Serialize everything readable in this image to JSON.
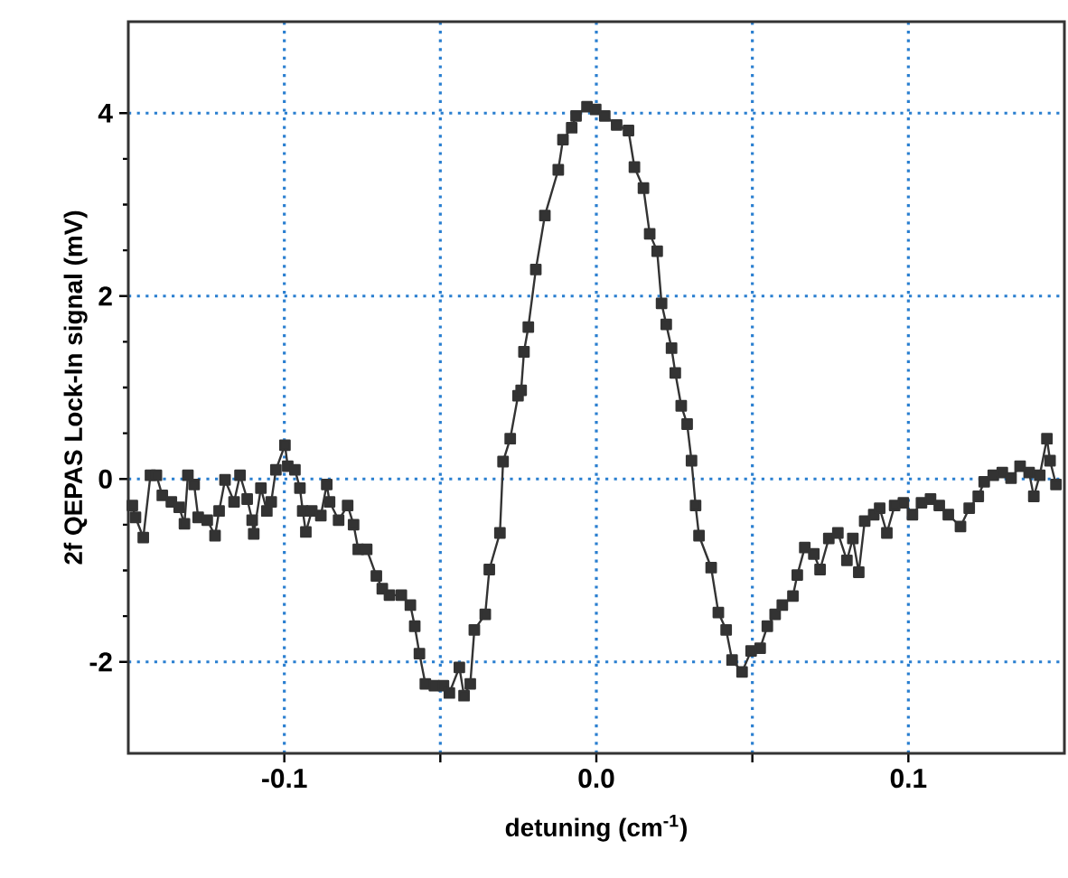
{
  "chart_data": {
    "type": "line",
    "xlabel": "detuning (cm$^{-1}$)",
    "ylabel": "2f QEPAS Lock-In signal (mV)",
    "xlim": [
      -0.15,
      0.15
    ],
    "ylim": [
      -3,
      5
    ],
    "xticks": [
      -0.1,
      {
        "value": -0.05,
        "label": null
      },
      {
        "value": 0,
        "label": "0.0"
      },
      {
        "value": 0.05,
        "label": null
      },
      0.1
    ],
    "yticks": [
      -2,
      0,
      2,
      4
    ],
    "grid": true,
    "marker": "square",
    "line_style": "solid",
    "series": [
      {
        "color": "#333333",
        "x": [
          -0.1487,
          -0.1477,
          -0.1452,
          -0.1429,
          -0.141,
          -0.1391,
          -0.1362,
          -0.1337,
          -0.132,
          -0.1309,
          -0.1289,
          -0.1276,
          -0.1247,
          -0.1222,
          -0.1209,
          -0.119,
          -0.1161,
          -0.1142,
          -0.1119,
          -0.1103,
          -0.1098,
          -0.1075,
          -0.1056,
          -0.1042,
          -0.1027,
          -0.0998,
          -0.0989,
          -0.0966,
          -0.095,
          -0.0941,
          -0.0931,
          -0.0912,
          -0.0883,
          -0.0864,
          -0.0855,
          -0.0826,
          -0.0797,
          -0.0778,
          -0.0763,
          -0.0736,
          -0.0705,
          -0.0686,
          -0.0663,
          -0.0625,
          -0.0596,
          -0.0582,
          -0.0567,
          -0.0548,
          -0.0519,
          -0.049,
          -0.0471,
          -0.0439,
          -0.0424,
          -0.0404,
          -0.0391,
          -0.0356,
          -0.0343,
          -0.0309,
          -0.0299,
          -0.0276,
          -0.0251,
          -0.0241,
          -0.0232,
          -0.0218,
          -0.0194,
          -0.0165,
          -0.0122,
          -0.0107,
          -0.0079,
          -0.0065,
          -0.003,
          -0.0002,
          0.0027,
          0.0065,
          0.0103,
          0.0122,
          0.0151,
          0.0171,
          0.0195,
          0.0209,
          0.0224,
          0.0241,
          0.0253,
          0.0272,
          0.0291,
          0.0305,
          0.0318,
          0.0329,
          0.0368,
          0.0391,
          0.0416,
          0.0435,
          0.0467,
          0.0496,
          0.0525,
          0.0548,
          0.0573,
          0.0596,
          0.063,
          0.0644,
          0.0668,
          0.0697,
          0.0717,
          0.0745,
          0.0774,
          0.0803,
          0.0822,
          0.0841,
          0.086,
          0.0889,
          0.0908,
          0.0931,
          0.0956,
          0.0984,
          0.1013,
          0.1042,
          0.1071,
          0.1099,
          0.1128,
          0.1167,
          0.1195,
          0.1224,
          0.1243,
          0.1272,
          0.1301,
          0.1329,
          0.1358,
          0.1387,
          0.1402,
          0.1421,
          0.1444,
          0.1454,
          0.1473
        ],
        "values": [
          -0.29,
          -0.42,
          -0.64,
          0.04,
          0.04,
          -0.18,
          -0.25,
          -0.31,
          -0.49,
          0.04,
          -0.06,
          -0.42,
          -0.45,
          -0.62,
          -0.35,
          -0.01,
          -0.25,
          0.04,
          -0.22,
          -0.45,
          -0.6,
          -0.1,
          -0.35,
          -0.25,
          0.1,
          0.37,
          0.14,
          0.1,
          -0.1,
          -0.35,
          -0.58,
          -0.35,
          -0.4,
          -0.06,
          -0.25,
          -0.45,
          -0.29,
          -0.5,
          -0.77,
          -0.77,
          -1.06,
          -1.2,
          -1.27,
          -1.27,
          -1.38,
          -1.61,
          -1.91,
          -2.24,
          -2.26,
          -2.26,
          -2.34,
          -2.06,
          -2.37,
          -2.24,
          -1.65,
          -1.48,
          -0.99,
          -0.59,
          0.19,
          0.44,
          0.91,
          0.97,
          1.39,
          1.66,
          2.29,
          2.88,
          3.38,
          3.71,
          3.84,
          3.97,
          4.07,
          4.04,
          3.97,
          3.87,
          3.81,
          3.41,
          3.18,
          2.68,
          2.49,
          1.92,
          1.69,
          1.43,
          1.16,
          0.8,
          0.6,
          0.2,
          -0.29,
          -0.62,
          -0.97,
          -1.46,
          -1.65,
          -1.98,
          -2.11,
          -1.88,
          -1.85,
          -1.61,
          -1.48,
          -1.38,
          -1.28,
          -1.05,
          -0.75,
          -0.82,
          -0.99,
          -0.65,
          -0.59,
          -0.89,
          -0.65,
          -1.02,
          -0.46,
          -0.39,
          -0.32,
          -0.59,
          -0.29,
          -0.26,
          -0.39,
          -0.26,
          -0.22,
          -0.29,
          -0.39,
          -0.52,
          -0.32,
          -0.19,
          -0.03,
          0.04,
          0.07,
          0.01,
          0.14,
          0.07,
          -0.19,
          0.04,
          0.44,
          0.2,
          -0.06
        ]
      }
    ]
  }
}
